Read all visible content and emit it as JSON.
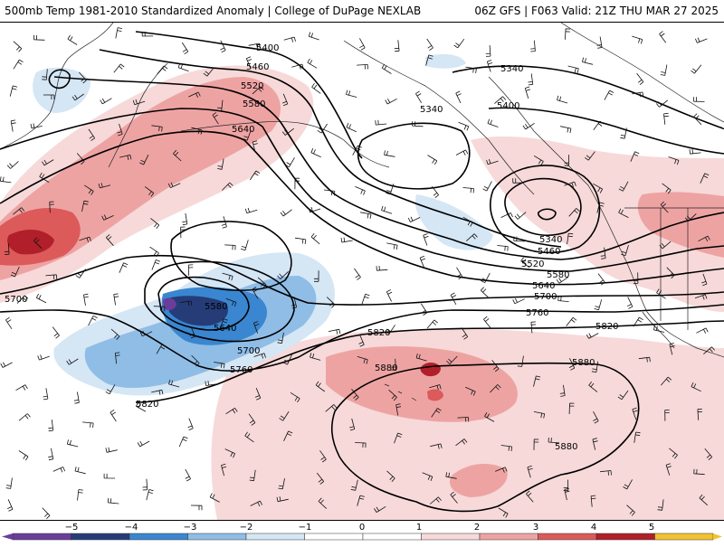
{
  "header": {
    "left_title": "500mb Temp 1981-2010 Standardized Anomaly | College of DuPage NEXLAB",
    "right_title": "06Z GFS | F063 Valid: 21Z THU MAR 27 2025"
  },
  "colors": {
    "neg5": "#6a3d9a",
    "neg4": "#253c78",
    "neg3": "#3a86d0",
    "neg2": "#8fbde6",
    "neg1": "#d5e6f5",
    "zero": "#ffffff",
    "pos1": "#f7d9d9",
    "pos2": "#eea3a3",
    "pos3": "#dc5a5a",
    "pos4": "#b01f2a",
    "pos5": "#f2c230"
  },
  "colorbar": {
    "ticks": [
      "−5",
      "−4",
      "−3",
      "−2",
      "−1",
      "0",
      "1",
      "2",
      "3",
      "4",
      "5"
    ]
  },
  "contour_labels": [
    "5400",
    "5460",
    "5520",
    "5580",
    "5640",
    "5340",
    "5340",
    "5400",
    "5340",
    "5460",
    "5520",
    "5580",
    "5640",
    "5700",
    "5760",
    "5820",
    "5580",
    "5640",
    "5700",
    "5760",
    "5820",
    "5820",
    "5880",
    "5880",
    "5880",
    "5700"
  ]
}
